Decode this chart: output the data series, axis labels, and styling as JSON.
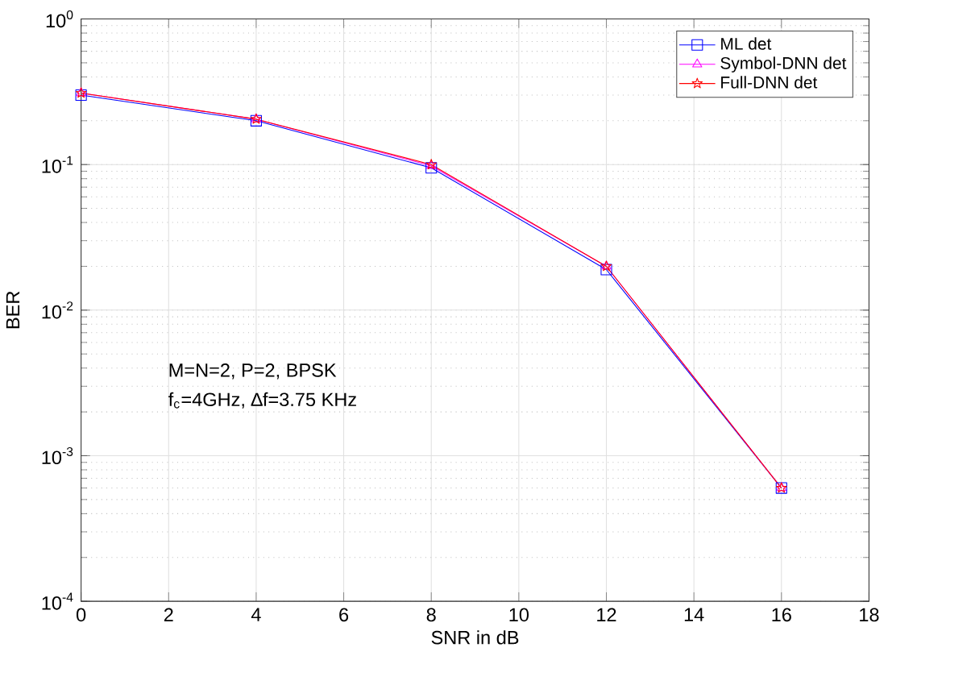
{
  "chart_data": {
    "type": "line",
    "xlabel": "SNR in dB",
    "ylabel": "BER",
    "log": "y",
    "grid": true,
    "legend": "top right",
    "x": [
      0,
      4,
      8,
      12,
      16
    ],
    "series": [
      {
        "name": "ML det",
        "color": "#0000ff",
        "marker": "square",
        "values": [
          0.3,
          0.2,
          0.095,
          0.019,
          0.0006
        ]
      },
      {
        "name": "Symbol-DNN det",
        "color": "#ff00ff",
        "marker": "triangle",
        "values": [
          0.31,
          0.205,
          0.098,
          0.02,
          0.0006
        ]
      },
      {
        "name": "Full-DNN det",
        "color": "#ff0000",
        "marker": "star",
        "values": [
          0.31,
          0.205,
          0.1,
          0.02,
          0.0006
        ]
      }
    ],
    "xlim": [
      0,
      18
    ],
    "xticks": [
      0,
      2,
      4,
      6,
      8,
      10,
      12,
      14,
      16,
      18
    ],
    "ylim": [
      0.0001,
      1
    ],
    "yticks": [
      {
        "value": 0.0001,
        "label": "10$^{-4}$"
      },
      {
        "value": 0.001,
        "label": "10$^{-3}$"
      },
      {
        "value": 0.01,
        "label": "10$^{-2}$"
      },
      {
        "value": 0.1,
        "label": "10$^{-1}$"
      },
      {
        "value": 1,
        "label": "10$^{0}$"
      }
    ],
    "annotations": [
      "M=N=2, P=2, BPSK",
      "f$_{c}$=4GHz, ∆f=3.75 KHz"
    ]
  }
}
